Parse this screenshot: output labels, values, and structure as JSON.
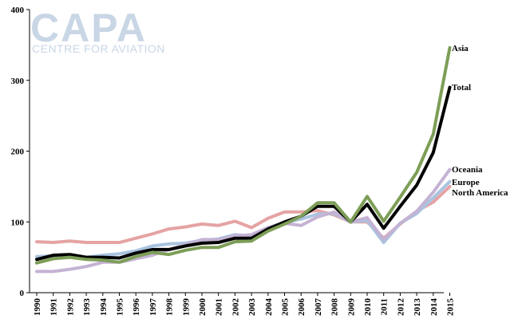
{
  "logo": {
    "main": "CAPA",
    "sub": "CENTRE FOR AVIATION"
  },
  "chart_data": {
    "type": "line",
    "title": "",
    "xlabel": "",
    "ylabel": "",
    "ylim": [
      0,
      400
    ],
    "yticks": [
      0,
      100,
      200,
      300,
      400
    ],
    "grid": false,
    "legend": "labels at line ends (right)",
    "x": [
      "1990",
      "1991",
      "1992",
      "1993",
      "1994",
      "1995",
      "1996",
      "1997",
      "1998",
      "1999",
      "2000",
      "2001",
      "2002",
      "2003",
      "2004",
      "2005",
      "2006",
      "2007",
      "2008",
      "2009",
      "2010",
      "2011",
      "2012",
      "2013",
      "2014",
      "2015"
    ],
    "series": [
      {
        "name": "North America",
        "color": "#e5a3a3",
        "values": [
          72,
          71,
          73,
          71,
          71,
          71,
          77,
          83,
          90,
          93,
          97,
          95,
          101,
          92,
          105,
          114,
          114,
          116,
          110,
          100,
          100,
          77,
          97,
          115,
          128,
          150
        ]
      },
      {
        "name": "Europe",
        "color": "#a9c3e0",
        "values": [
          51,
          52,
          50,
          50,
          53,
          55,
          59,
          66,
          69,
          70,
          74,
          76,
          82,
          80,
          92,
          99,
          104,
          111,
          112,
          100,
          102,
          71,
          98,
          112,
          134,
          157
        ]
      },
      {
        "name": "Oceania",
        "color": "#c4b2d3",
        "values": [
          30,
          30,
          33,
          37,
          43,
          43,
          48,
          53,
          61,
          68,
          75,
          75,
          80,
          82,
          92,
          98,
          95,
          107,
          114,
          100,
          106,
          75,
          98,
          115,
          142,
          174
        ]
      },
      {
        "name": "Total",
        "color": "#000000",
        "values": [
          47,
          53,
          54,
          50,
          50,
          49,
          56,
          61,
          61,
          66,
          70,
          71,
          77,
          77,
          90,
          100,
          108,
          122,
          122,
          100,
          125,
          91,
          122,
          152,
          198,
          290
        ]
      },
      {
        "name": "Asia",
        "color": "#7d9e57",
        "values": [
          42,
          48,
          50,
          47,
          46,
          43,
          51,
          57,
          54,
          60,
          64,
          64,
          72,
          73,
          87,
          97,
          108,
          127,
          127,
          100,
          136,
          101,
          135,
          170,
          224,
          346
        ]
      }
    ]
  }
}
